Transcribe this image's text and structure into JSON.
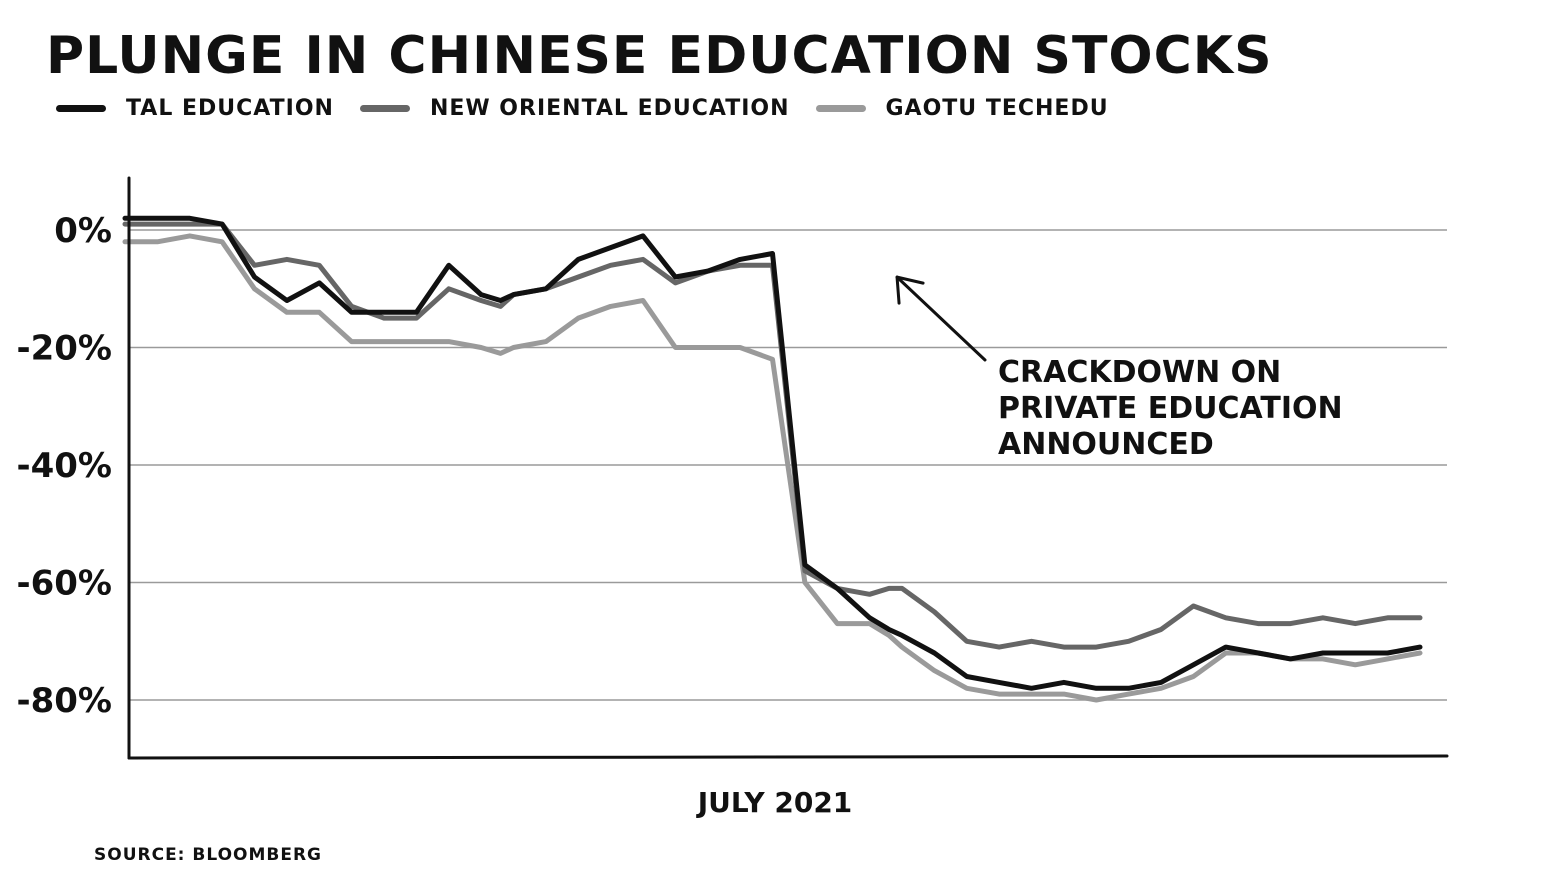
{
  "chart_data": {
    "type": "line",
    "title": "PLUNGE IN CHINESE EDUCATION STOCKS",
    "xlabel": "JULY 2021",
    "ylabel": "",
    "ylim": [
      -90,
      10
    ],
    "yticks": [
      0,
      -20,
      -40,
      -60,
      -80
    ],
    "ytick_labels": [
      "0%",
      "-20%",
      "-40%",
      "-60%",
      "-80%"
    ],
    "grid": true,
    "legend": "top-left",
    "x": [
      0,
      5,
      10,
      15,
      20,
      25,
      30,
      35,
      40,
      45,
      50,
      55,
      58,
      60,
      65,
      70,
      75,
      80,
      85,
      90,
      95,
      100,
      105,
      110,
      115,
      118,
      120,
      125,
      130,
      135,
      140,
      145,
      150,
      155,
      160,
      165,
      170,
      175,
      180,
      185,
      190,
      195,
      200
    ],
    "series": [
      {
        "name": "TAL EDUCATION",
        "color": "#111111",
        "values": [
          2,
          2,
          2,
          1,
          -8,
          -12,
          -9,
          -14,
          -14,
          -14,
          -6,
          -11,
          -12,
          -11,
          -10,
          -5,
          -3,
          -1,
          -8,
          -7,
          -5,
          -4,
          -57,
          -61,
          -66,
          -68,
          -69,
          -72,
          -76,
          -77,
          -78,
          -77,
          -78,
          -78,
          -77,
          -74,
          -71,
          -72,
          -73,
          -72,
          -72,
          -72,
          -71
        ]
      },
      {
        "name": "NEW ORIENTAL EDUCATION",
        "color": "#666666",
        "values": [
          1,
          1,
          1,
          1,
          -6,
          -5,
          -6,
          -13,
          -15,
          -15,
          -10,
          -12,
          -13,
          -11,
          -10,
          -8,
          -6,
          -5,
          -9,
          -7,
          -6,
          -6,
          -58,
          -61,
          -62,
          -61,
          -61,
          -65,
          -70,
          -71,
          -70,
          -71,
          -71,
          -70,
          -68,
          -64,
          -66,
          -67,
          -67,
          -66,
          -67,
          -66,
          -66
        ]
      },
      {
        "name": "GAOTU TECHEDU",
        "color": "#9a9a9a",
        "values": [
          -2,
          -2,
          -1,
          -2,
          -10,
          -14,
          -14,
          -19,
          -19,
          -19,
          -19,
          -20,
          -21,
          -20,
          -19,
          -15,
          -13,
          -12,
          -20,
          -20,
          -20,
          -22,
          -60,
          -67,
          -67,
          -69,
          -71,
          -75,
          -78,
          -79,
          -79,
          -79,
          -80,
          -79,
          -78,
          -76,
          -72,
          -72,
          -73,
          -73,
          -74,
          -73,
          -72
        ]
      }
    ],
    "annotation": {
      "text": [
        "CRACKDOWN ON",
        "PRIVATE EDUCATION",
        "ANNOUNCED"
      ],
      "x": 118,
      "y": -7
    }
  },
  "source": "SOURCE: BLOOMBERG"
}
